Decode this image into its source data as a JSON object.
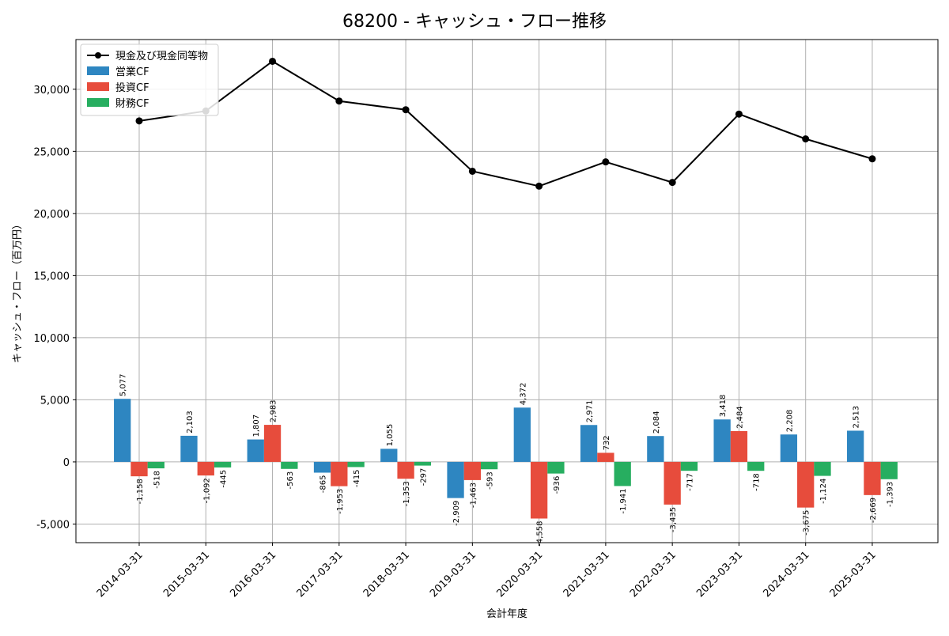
{
  "chart_data": {
    "type": "bar",
    "title": "68200 - キャッシュ・フロー推移",
    "xlabel": "会計年度",
    "ylabel": "キャッシュ・フロー（百万円）",
    "ylim": [
      -6500,
      34000
    ],
    "yticks": [
      -5000,
      0,
      5000,
      10000,
      15000,
      20000,
      25000,
      30000
    ],
    "ytick_labels": [
      "-5,000",
      "0",
      "5,000",
      "10,000",
      "15,000",
      "20,000",
      "25,000",
      "30,000"
    ],
    "grid": true,
    "legend_position": "top-left",
    "categories": [
      "2014-03-31",
      "2015-03-31",
      "2016-03-31",
      "2017-03-31",
      "2018-03-31",
      "2019-03-31",
      "2020-03-31",
      "2021-03-31",
      "2022-03-31",
      "2023-03-31",
      "2024-03-31",
      "2025-03-31"
    ],
    "series": [
      {
        "name": "営業CF",
        "kind": "bar",
        "color": "#2e86c1",
        "values": [
          5077,
          2103,
          1807,
          -865,
          1055,
          -2909,
          4372,
          2971,
          2084,
          3418,
          2208,
          2513
        ],
        "labels": [
          "5,077",
          "2,103",
          "1,807",
          "-865",
          "1,055",
          "-2,909",
          "4,372",
          "2,971",
          "2,084",
          "3,418",
          "2,208",
          "2,513"
        ]
      },
      {
        "name": "投資CF",
        "kind": "bar",
        "color": "#e74c3c",
        "values": [
          -1158,
          -1092,
          2983,
          -1953,
          -1353,
          -1463,
          -4558,
          732,
          -3435,
          2484,
          -3675,
          -2669
        ],
        "labels": [
          "-1,158",
          "-1,092",
          "2,983",
          "-1,953",
          "-1,353",
          "-1,463",
          "-4,558",
          "732",
          "-3,435",
          "2,484",
          "-3,675",
          "-2,669"
        ]
      },
      {
        "name": "財務CF",
        "kind": "bar",
        "color": "#27ae60",
        "values": [
          -518,
          -445,
          -563,
          -415,
          -297,
          -593,
          -936,
          -1941,
          -717,
          -718,
          -1124,
          -1393
        ],
        "labels": [
          "-518",
          "-445",
          "-563",
          "-415",
          "-297",
          "-593",
          "-936",
          "-1,941",
          "-717",
          "-718",
          "-1,124",
          "-1,393"
        ]
      },
      {
        "name": "現金及び現金同等物",
        "kind": "line",
        "color": "#000000",
        "values": [
          27450,
          28250,
          32250,
          29050,
          28350,
          23400,
          22200,
          24150,
          22500,
          28000,
          26000,
          24400
        ]
      }
    ]
  }
}
